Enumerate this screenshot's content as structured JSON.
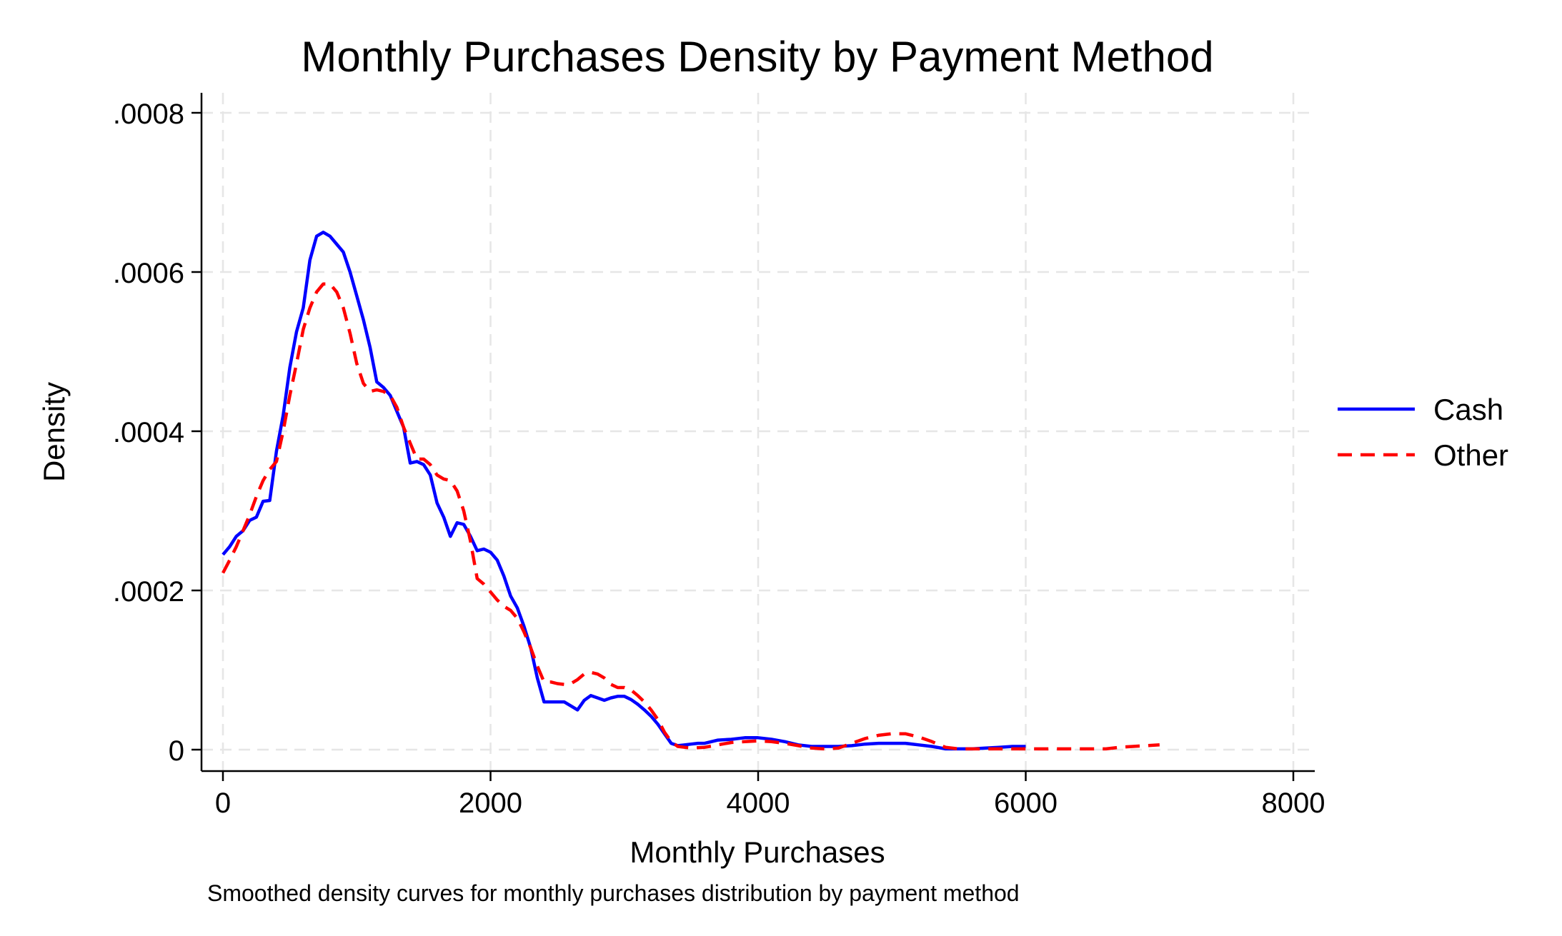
{
  "chart_data": {
    "type": "line",
    "title": "Monthly Purchases Density by Payment Method",
    "xlabel": "Monthly Purchases",
    "ylabel": "Density",
    "note": "Smoothed density curves for monthly purchases distribution by payment method",
    "xlim": [
      0,
      8000
    ],
    "ylim": [
      0,
      0.0008
    ],
    "xticks": [
      {
        "value": 0,
        "label": "0"
      },
      {
        "value": 2000,
        "label": "2000"
      },
      {
        "value": 4000,
        "label": "4000"
      },
      {
        "value": 6000,
        "label": "6000"
      },
      {
        "value": 8000,
        "label": "8000"
      }
    ],
    "yticks": [
      {
        "value": 0,
        "label": "0"
      },
      {
        "value": 0.0002,
        "label": ".0002"
      },
      {
        "value": 0.0004,
        "label": ".0004"
      },
      {
        "value": 0.0006,
        "label": ".0006"
      },
      {
        "value": 0.0008,
        "label": ".0008"
      }
    ],
    "grid": true,
    "legend_position": "right",
    "series": [
      {
        "name": "Cash",
        "color": "#0000ff",
        "style": "solid",
        "points": [
          [
            0,
            0.000245
          ],
          [
            50,
            0.000255
          ],
          [
            100,
            0.000268
          ],
          [
            150,
            0.000275
          ],
          [
            200,
            0.000288
          ],
          [
            250,
            0.000292
          ],
          [
            300,
            0.000312
          ],
          [
            350,
            0.000313
          ],
          [
            400,
            0.000375
          ],
          [
            450,
            0.00042
          ],
          [
            500,
            0.00048
          ],
          [
            550,
            0.000525
          ],
          [
            600,
            0.000555
          ],
          [
            650,
            0.000615
          ],
          [
            700,
            0.000645
          ],
          [
            750,
            0.00065
          ],
          [
            800,
            0.000645
          ],
          [
            850,
            0.000635
          ],
          [
            900,
            0.000625
          ],
          [
            950,
            0.0006
          ],
          [
            1000,
            0.00057
          ],
          [
            1050,
            0.00054
          ],
          [
            1100,
            0.000505
          ],
          [
            1150,
            0.000462
          ],
          [
            1200,
            0.000455
          ],
          [
            1250,
            0.000445
          ],
          [
            1300,
            0.000425
          ],
          [
            1350,
            0.000405
          ],
          [
            1400,
            0.00036
          ],
          [
            1450,
            0.000362
          ],
          [
            1500,
            0.000358
          ],
          [
            1550,
            0.000345
          ],
          [
            1600,
            0.00031
          ],
          [
            1650,
            0.000292
          ],
          [
            1700,
            0.000268
          ],
          [
            1750,
            0.000285
          ],
          [
            1800,
            0.000283
          ],
          [
            1850,
            0.000268
          ],
          [
            1900,
            0.00025
          ],
          [
            1950,
            0.000252
          ],
          [
            2000,
            0.000248
          ],
          [
            2050,
            0.000238
          ],
          [
            2100,
            0.000218
          ],
          [
            2150,
            0.000193
          ],
          [
            2200,
            0.000178
          ],
          [
            2250,
            0.000155
          ],
          [
            2300,
            0.000128
          ],
          [
            2350,
            9e-05
          ],
          [
            2400,
            6e-05
          ],
          [
            2450,
            6e-05
          ],
          [
            2500,
            6e-05
          ],
          [
            2550,
            6e-05
          ],
          [
            2600,
            5.5e-05
          ],
          [
            2650,
            5e-05
          ],
          [
            2700,
            6.2e-05
          ],
          [
            2750,
            6.8e-05
          ],
          [
            2800,
            6.5e-05
          ],
          [
            2850,
            6.2e-05
          ],
          [
            2900,
            6.5e-05
          ],
          [
            2950,
            6.7e-05
          ],
          [
            3000,
            6.7e-05
          ],
          [
            3050,
            6.3e-05
          ],
          [
            3100,
            5.7e-05
          ],
          [
            3150,
            5e-05
          ],
          [
            3200,
            4.2e-05
          ],
          [
            3250,
            3.2e-05
          ],
          [
            3300,
            2e-05
          ],
          [
            3350,
            8e-06
          ],
          [
            3400,
            5e-06
          ],
          [
            3450,
            6e-06
          ],
          [
            3500,
            7e-06
          ],
          [
            3550,
            8e-06
          ],
          [
            3600,
            8e-06
          ],
          [
            3650,
            1e-05
          ],
          [
            3700,
            1.2e-05
          ],
          [
            3800,
            1.3e-05
          ],
          [
            3900,
            1.5e-05
          ],
          [
            4000,
            1.5e-05
          ],
          [
            4100,
            1.3e-05
          ],
          [
            4200,
            1e-05
          ],
          [
            4300,
            6e-06
          ],
          [
            4400,
            4e-06
          ],
          [
            4500,
            4e-06
          ],
          [
            4600,
            4e-06
          ],
          [
            4700,
            5e-06
          ],
          [
            4800,
            7e-06
          ],
          [
            4900,
            8e-06
          ],
          [
            5000,
            8e-06
          ],
          [
            5100,
            8e-06
          ],
          [
            5200,
            6e-06
          ],
          [
            5300,
            4e-06
          ],
          [
            5400,
            1e-06
          ],
          [
            5500,
            1e-06
          ],
          [
            5600,
            1e-06
          ],
          [
            5700,
            2e-06
          ],
          [
            5800,
            3e-06
          ],
          [
            5900,
            4e-06
          ],
          [
            6000,
            4e-06
          ]
        ]
      },
      {
        "name": "Other",
        "color": "#ff0000",
        "style": "dashed",
        "points": [
          [
            0,
            0.000222
          ],
          [
            50,
            0.000238
          ],
          [
            100,
            0.000255
          ],
          [
            150,
            0.000275
          ],
          [
            200,
            0.000295
          ],
          [
            250,
            0.000318
          ],
          [
            300,
            0.000338
          ],
          [
            350,
            0.000352
          ],
          [
            400,
            0.000362
          ],
          [
            450,
            0.0004
          ],
          [
            500,
            0.000445
          ],
          [
            550,
            0.000485
          ],
          [
            600,
            0.000528
          ],
          [
            650,
            0.000555
          ],
          [
            700,
            0.000575
          ],
          [
            750,
            0.000585
          ],
          [
            800,
            0.000585
          ],
          [
            850,
            0.000575
          ],
          [
            900,
            0.000555
          ],
          [
            950,
            0.000523
          ],
          [
            1000,
            0.000485
          ],
          [
            1050,
            0.00046
          ],
          [
            1100,
            0.00045
          ],
          [
            1150,
            0.000452
          ],
          [
            1200,
            0.00045
          ],
          [
            1250,
            0.000445
          ],
          [
            1300,
            0.00043
          ],
          [
            1350,
            0.000405
          ],
          [
            1400,
            0.000385
          ],
          [
            1450,
            0.000365
          ],
          [
            1500,
            0.000365
          ],
          [
            1550,
            0.000358
          ],
          [
            1600,
            0.000345
          ],
          [
            1650,
            0.00034
          ],
          [
            1700,
            0.000338
          ],
          [
            1750,
            0.000325
          ],
          [
            1800,
            0.0003
          ],
          [
            1850,
            0.000262
          ],
          [
            1900,
            0.000215
          ],
          [
            1950,
            0.000208
          ],
          [
            2000,
            0.000198
          ],
          [
            2050,
            0.000188
          ],
          [
            2100,
            0.00018
          ],
          [
            2150,
            0.000175
          ],
          [
            2200,
            0.000165
          ],
          [
            2250,
            0.000148
          ],
          [
            2300,
            0.000128
          ],
          [
            2350,
            0.000105
          ],
          [
            2400,
            8.5e-05
          ],
          [
            2450,
            8.5e-05
          ],
          [
            2500,
            8.3e-05
          ],
          [
            2550,
            8.2e-05
          ],
          [
            2600,
            8.3e-05
          ],
          [
            2650,
            8.8e-05
          ],
          [
            2700,
            9.5e-05
          ],
          [
            2750,
            9.7e-05
          ],
          [
            2800,
            9.5e-05
          ],
          [
            2850,
            9e-05
          ],
          [
            2900,
            8.2e-05
          ],
          [
            2950,
            7.8e-05
          ],
          [
            3000,
            7.8e-05
          ],
          [
            3050,
            7.5e-05
          ],
          [
            3100,
            6.8e-05
          ],
          [
            3150,
            6e-05
          ],
          [
            3200,
            5e-05
          ],
          [
            3250,
            3.8e-05
          ],
          [
            3300,
            2.2e-05
          ],
          [
            3350,
            1e-05
          ],
          [
            3400,
            4e-06
          ],
          [
            3450,
            3e-06
          ],
          [
            3500,
            2e-06
          ],
          [
            3600,
            3e-06
          ],
          [
            3700,
            6e-06
          ],
          [
            3800,
            9e-06
          ],
          [
            3900,
            1e-05
          ],
          [
            4000,
            1.1e-05
          ],
          [
            4100,
            1e-05
          ],
          [
            4200,
            8e-06
          ],
          [
            4300,
            5e-06
          ],
          [
            4400,
            2e-06
          ],
          [
            4500,
            1e-06
          ],
          [
            4600,
            2e-06
          ],
          [
            4700,
            8e-06
          ],
          [
            4800,
            1.4e-05
          ],
          [
            4900,
            1.8e-05
          ],
          [
            5000,
            2e-05
          ],
          [
            5100,
            2e-05
          ],
          [
            5200,
            1.6e-05
          ],
          [
            5300,
            1e-05
          ],
          [
            5400,
            3e-06
          ],
          [
            5500,
            1e-06
          ],
          [
            5600,
            1e-06
          ],
          [
            5800,
            1e-06
          ],
          [
            6000,
            1e-06
          ],
          [
            6200,
            1e-06
          ],
          [
            6400,
            1e-06
          ],
          [
            6600,
            1e-06
          ],
          [
            6700,
            3e-06
          ],
          [
            6800,
            4e-06
          ],
          [
            6900,
            5e-06
          ],
          [
            7000,
            6e-06
          ]
        ]
      }
    ]
  }
}
